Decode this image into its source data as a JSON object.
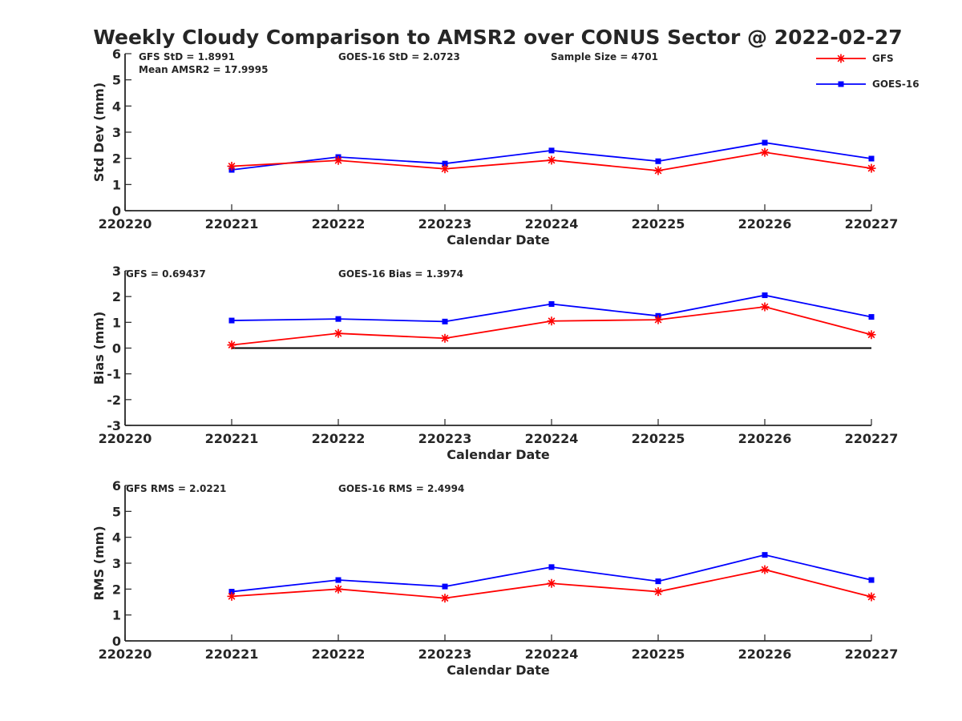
{
  "figure": {
    "title": "Weekly Cloudy Comparison to AMSR2 over CONUS Sector @ 2022-02-27"
  },
  "legend": {
    "placement": "top-right",
    "entries": [
      {
        "label": "GFS",
        "color": "#ff0000",
        "marker": "asterisk"
      },
      {
        "label": "GOES-16",
        "color": "#0000ff",
        "marker": "square"
      }
    ]
  },
  "chart_data": [
    {
      "type": "line",
      "xlabel": "Calendar Date",
      "ylabel": "Std Dev (mm)",
      "ylim": [
        0,
        6
      ],
      "yticks": [
        0,
        1,
        2,
        3,
        4,
        5,
        6
      ],
      "xticks": [
        "220220",
        "220221",
        "220222",
        "220223",
        "220224",
        "220225",
        "220226",
        "220227"
      ],
      "x": [
        "220221",
        "220222",
        "220223",
        "220224",
        "220225",
        "220226",
        "220227"
      ],
      "series": [
        {
          "name": "GFS",
          "color": "#ff0000",
          "marker": "asterisk",
          "values": [
            1.7,
            1.92,
            1.6,
            1.93,
            1.53,
            2.23,
            1.62
          ]
        },
        {
          "name": "GOES-16",
          "color": "#0000ff",
          "marker": "square",
          "values": [
            1.56,
            2.05,
            1.8,
            2.3,
            1.89,
            2.6,
            1.99
          ]
        }
      ],
      "zero_line": false,
      "annotations": [
        "GFS StD = 1.8991",
        "Mean AMSR2 = 17.9995",
        "GOES-16 StD = 2.0723",
        "Sample Size = 4701"
      ]
    },
    {
      "type": "line",
      "xlabel": "Calendar Date",
      "ylabel": "Bias (mm)",
      "ylim": [
        -3,
        3
      ],
      "yticks": [
        -3,
        -2,
        -1,
        0,
        1,
        2,
        3
      ],
      "xticks": [
        "220220",
        "220221",
        "220222",
        "220223",
        "220224",
        "220225",
        "220226",
        "220227"
      ],
      "x": [
        "220221",
        "220222",
        "220223",
        "220224",
        "220225",
        "220226",
        "220227"
      ],
      "series": [
        {
          "name": "GFS",
          "color": "#ff0000",
          "marker": "asterisk",
          "values": [
            0.12,
            0.57,
            0.38,
            1.05,
            1.1,
            1.6,
            0.52
          ]
        },
        {
          "name": "GOES-16",
          "color": "#0000ff",
          "marker": "square",
          "values": [
            1.07,
            1.13,
            1.03,
            1.71,
            1.25,
            2.05,
            1.21
          ]
        }
      ],
      "zero_line": true,
      "annotations": [
        "GFS = 0.69437",
        "GOES-16 Bias  = 1.3974"
      ]
    },
    {
      "type": "line",
      "xlabel": "Calendar Date",
      "ylabel": "RMS (mm)",
      "ylim": [
        0,
        6
      ],
      "yticks": [
        0,
        1,
        2,
        3,
        4,
        5,
        6
      ],
      "xticks": [
        "220220",
        "220221",
        "220222",
        "220223",
        "220224",
        "220225",
        "220226",
        "220227"
      ],
      "x": [
        "220221",
        "220222",
        "220223",
        "220224",
        "220225",
        "220226",
        "220227"
      ],
      "series": [
        {
          "name": "GFS",
          "color": "#ff0000",
          "marker": "asterisk",
          "values": [
            1.72,
            2.0,
            1.65,
            2.22,
            1.9,
            2.75,
            1.7
          ]
        },
        {
          "name": "GOES-16",
          "color": "#0000ff",
          "marker": "square",
          "values": [
            1.9,
            2.35,
            2.1,
            2.85,
            2.3,
            3.32,
            2.35
          ]
        }
      ],
      "zero_line": false,
      "annotations": [
        "GFS RMS = 2.0221",
        "GOES-16 RMS = 2.4994"
      ]
    }
  ]
}
